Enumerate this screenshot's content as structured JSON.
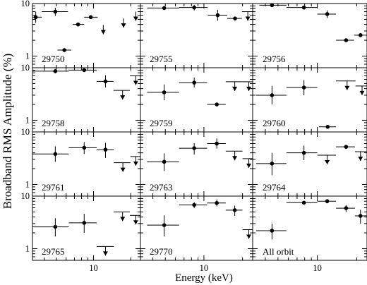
{
  "chart_data": {
    "type": "scatter",
    "ylabel": "Broadband RMS Amplitude (%)",
    "xlabel": "Energy (keV)",
    "x_scale": "log",
    "y_scale": "log",
    "xlim": [
      3.2,
      24
    ],
    "ylim": [
      0.6,
      10
    ],
    "x_ticks": [
      {
        "value": 10,
        "label": "10"
      }
    ],
    "y_ticks": [
      {
        "value": 1,
        "label": "1"
      },
      {
        "value": 10,
        "label": "10"
      }
    ],
    "grid": false,
    "layout": "4 rows x 3 columns",
    "panels": [
      {
        "label": "29750",
        "points": [
          {
            "x": 3.4,
            "y": 5.5,
            "xerr": [
              3.2,
              3.8
            ],
            "yerr": [
              4.3,
              7.0
            ]
          },
          {
            "x": 4.9,
            "y": 7.0,
            "xerr": [
              3.8,
              6.2
            ],
            "yerr": [
              5.8,
              8.3
            ]
          },
          {
            "x": 5.8,
            "y": 1.3,
            "xerr": [
              5.1,
              6.6
            ]
          },
          {
            "x": 7.5,
            "y": 4.0,
            "xerr": [
              6.8,
              8.4
            ]
          },
          {
            "x": 9.5,
            "y": 5.5,
            "xerr": [
              8.4,
              10.8
            ]
          },
          {
            "x": 12.0,
            "y": 3.9,
            "upper_limit": true
          },
          {
            "x": 17.5,
            "y": 5.2,
            "upper_limit": true
          },
          {
            "x": 22.0,
            "y": 7.0,
            "upper_limit": true
          }
        ]
      },
      {
        "label": "29755",
        "points": [
          {
            "x": 4.9,
            "y": 8.2,
            "xerr": [
              3.6,
              6.4
            ]
          },
          {
            "x": 8.4,
            "y": 8.4,
            "xerr": [
              6.4,
              10.7
            ],
            "yerr": [
              7.4,
              9.4
            ]
          },
          {
            "x": 12.8,
            "y": 6.0,
            "xerr": [
              10.7,
              15.2
            ],
            "yerr": [
              4.7,
              7.6
            ]
          },
          {
            "x": 17.5,
            "y": 5.2,
            "xerr": [
              15.2,
              19.8
            ]
          },
          {
            "x": 22.0,
            "y": 7.0,
            "xerr": [
              19.8,
              24.0
            ],
            "upper_limit": true
          }
        ]
      },
      {
        "label": "29756",
        "points": [
          {
            "x": 4.5,
            "y": 9.3,
            "xerr": [
              3.6,
              5.8
            ]
          },
          {
            "x": 7.9,
            "y": 8.4,
            "xerr": [
              5.8,
              10.0
            ]
          },
          {
            "x": 11.9,
            "y": 6.3,
            "xerr": [
              10.0,
              13.9
            ],
            "yerr": [
              5.3,
              7.4
            ]
          },
          {
            "x": 16.6,
            "y": 2.0,
            "xerr": [
              13.9,
              19.1
            ]
          },
          {
            "x": 21.4,
            "y": 2.5,
            "xerr": [
              19.1,
              24.0
            ]
          }
        ]
      },
      {
        "label": "29758",
        "points": [
          {
            "x": 4.9,
            "y": 8.6,
            "xerr": [
              3.2,
              6.3
            ],
            "yerr": [
              7.8,
              9.5
            ]
          },
          {
            "x": 8.4,
            "y": 9.0,
            "xerr": [
              6.3,
              10.6
            ]
          },
          {
            "x": 12.5,
            "y": 5.5,
            "xerr": [
              10.6,
              14.5
            ],
            "yerr": [
              4.2,
              7.2
            ]
          },
          {
            "x": 17.2,
            "y": 3.7,
            "xerr": [
              14.5,
              19.7
            ],
            "upper_limit": true
          },
          {
            "x": 22.0,
            "y": 7.0,
            "xerr": [
              19.7,
              24.0
            ],
            "upper_limit": true
          }
        ]
      },
      {
        "label": "29759",
        "points": [
          {
            "x": 4.9,
            "y": 3.4,
            "xerr": [
              3.6,
              6.4
            ],
            "yerr": [
              2.4,
              4.8
            ]
          },
          {
            "x": 8.4,
            "y": 5.2,
            "xerr": [
              6.4,
              10.6
            ],
            "yerr": [
              4.2,
              6.5
            ]
          },
          {
            "x": 12.6,
            "y": 2.0,
            "xerr": [
              10.6,
              14.8
            ]
          },
          {
            "x": 17.4,
            "y": 5.4,
            "xerr": [
              14.8,
              20.0
            ],
            "upper_limit": true
          },
          {
            "x": 22.4,
            "y": 5.4,
            "xerr": [
              20.0,
              24.0
            ],
            "upper_limit": true
          }
        ]
      },
      {
        "label": "29760",
        "points": [
          {
            "x": 4.5,
            "y": 3.0,
            "xerr": [
              3.4,
              5.8
            ],
            "yerr": [
              2.0,
              4.5
            ]
          },
          {
            "x": 7.9,
            "y": 4.2,
            "xerr": [
              5.8,
              10.0
            ],
            "yerr": [
              3.0,
              5.8
            ]
          },
          {
            "x": 12.0,
            "y": 0.75,
            "xerr": [
              10.3,
              13.9
            ]
          },
          {
            "x": 16.9,
            "y": 5.6,
            "xerr": [
              13.9,
              19.6
            ],
            "upper_limit": true
          },
          {
            "x": 22.0,
            "y": 4.5,
            "xerr": [
              19.6,
              24.0
            ],
            "upper_limit": true
          }
        ]
      },
      {
        "label": "29761",
        "points": [
          {
            "x": 4.9,
            "y": 3.8,
            "xerr": [
              3.2,
              6.3
            ],
            "yerr": [
              2.7,
              5.3
            ]
          },
          {
            "x": 8.4,
            "y": 5.0,
            "xerr": [
              6.3,
              10.6
            ],
            "yerr": [
              3.8,
              6.4
            ]
          },
          {
            "x": 12.5,
            "y": 4.6,
            "xerr": [
              10.6,
              14.6
            ],
            "yerr": [
              3.2,
              6.2
            ]
          },
          {
            "x": 17.3,
            "y": 2.6,
            "xerr": [
              14.6,
              19.9
            ],
            "upper_limit": true
          },
          {
            "x": 22.0,
            "y": 3.4,
            "xerr": [
              19.9,
              24.0
            ],
            "upper_limit": true
          }
        ]
      },
      {
        "label": "29763",
        "points": [
          {
            "x": 4.9,
            "y": 2.7,
            "xerr": [
              3.6,
              6.4
            ],
            "yerr": [
              1.8,
              3.9
            ]
          },
          {
            "x": 8.4,
            "y": 4.9,
            "xerr": [
              6.4,
              10.6
            ],
            "yerr": [
              3.7,
              6.1
            ]
          },
          {
            "x": 12.6,
            "y": 6.0,
            "xerr": [
              10.6,
              14.8
            ],
            "yerr": [
              4.8,
              7.5
            ]
          },
          {
            "x": 17.4,
            "y": 4.3,
            "xerr": [
              14.8,
              20.0
            ],
            "upper_limit": true
          },
          {
            "x": 22.4,
            "y": 3.1,
            "xerr": [
              20.0,
              24.0
            ],
            "upper_limit": true
          }
        ]
      },
      {
        "label": "29764",
        "points": [
          {
            "x": 4.5,
            "y": 2.5,
            "xerr": [
              3.4,
              5.8
            ],
            "yerr": [
              1.5,
              4.0
            ]
          },
          {
            "x": 7.9,
            "y": 4.0,
            "xerr": [
              5.8,
              10.0
            ],
            "yerr": [
              2.9,
              5.5
            ]
          },
          {
            "x": 11.9,
            "y": 3.6,
            "xerr": [
              10.0,
              13.9
            ],
            "upper_limit": true
          },
          {
            "x": 16.6,
            "y": 5.2,
            "xerr": [
              13.9,
              19.4
            ]
          },
          {
            "x": 21.4,
            "y": 4.2,
            "xerr": [
              19.4,
              24.0
            ],
            "upper_limit": true
          }
        ]
      },
      {
        "label": "29765",
        "points": [
          {
            "x": 4.9,
            "y": 2.6,
            "xerr": [
              3.2,
              6.3
            ],
            "yerr": [
              1.7,
              3.8
            ]
          },
          {
            "x": 8.4,
            "y": 3.1,
            "xerr": [
              6.3,
              10.6
            ],
            "yerr": [
              2.0,
              4.6
            ]
          },
          {
            "x": 12.5,
            "y": 1.1,
            "xerr": [
              10.6,
              14.6
            ],
            "upper_limit": true
          },
          {
            "x": 17.2,
            "y": 5.0,
            "xerr": [
              14.6,
              19.7
            ],
            "upper_limit": true
          },
          {
            "x": 22.0,
            "y": 4.3,
            "xerr": [
              19.7,
              24.0
            ],
            "upper_limit": true
          }
        ]
      },
      {
        "label": "29770",
        "points": [
          {
            "x": 4.9,
            "y": 2.8,
            "xerr": [
              3.6,
              6.4
            ],
            "yerr": [
              1.7,
              4.3
            ]
          },
          {
            "x": 8.4,
            "y": 6.8,
            "xerr": [
              6.4,
              10.6
            ],
            "yerr": [
              5.9,
              7.6
            ]
          },
          {
            "x": 12.6,
            "y": 7.4,
            "xerr": [
              10.6,
              14.8
            ],
            "yerr": [
              6.4,
              8.6
            ]
          },
          {
            "x": 17.4,
            "y": 5.4,
            "xerr": [
              14.8,
              20.0
            ],
            "yerr": [
              4.2,
              6.6
            ]
          },
          {
            "x": 22.4,
            "y": 2.3,
            "xerr": [
              20.0,
              24.0
            ],
            "upper_limit": true
          }
        ]
      },
      {
        "label": "All orbit",
        "points": [
          {
            "x": 4.5,
            "y": 2.2,
            "xerr": [
              3.4,
              5.8
            ],
            "yerr": [
              1.5,
              3.0
            ]
          },
          {
            "x": 7.9,
            "y": 7.5,
            "xerr": [
              5.8,
              10.0
            ],
            "yerr": [
              7.0,
              8.0
            ]
          },
          {
            "x": 11.9,
            "y": 8.0,
            "xerr": [
              10.0,
              13.9
            ],
            "yerr": [
              7.3,
              8.6
            ]
          },
          {
            "x": 16.6,
            "y": 5.9,
            "xerr": [
              13.9,
              19.4
            ],
            "yerr": [
              5.0,
              6.7
            ]
          },
          {
            "x": 21.4,
            "y": 4.2,
            "xerr": [
              19.4,
              24.0
            ],
            "yerr": [
              3.0,
              5.5
            ]
          }
        ]
      }
    ]
  }
}
